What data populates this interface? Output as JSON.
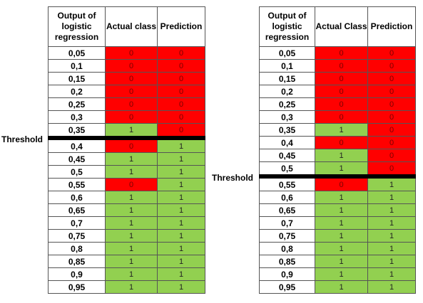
{
  "colors": {
    "red": "#ff0000",
    "green": "#92d050",
    "threshold_line": "#000000"
  },
  "left": {
    "threshold_label": "Threshold",
    "threshold_after_row": 6,
    "headers": [
      "Output of logistic regression",
      "Actual class",
      "Prediction"
    ],
    "rows": [
      {
        "output": "0,05",
        "actual": "0",
        "pred": "0"
      },
      {
        "output": "0,1",
        "actual": "0",
        "pred": "0"
      },
      {
        "output": "0,15",
        "actual": "0",
        "pred": "0"
      },
      {
        "output": "0,2",
        "actual": "0",
        "pred": "0"
      },
      {
        "output": "0,25",
        "actual": "0",
        "pred": "0"
      },
      {
        "output": "0,3",
        "actual": "0",
        "pred": "0"
      },
      {
        "output": "0,35",
        "actual": "1",
        "pred": "0"
      },
      {
        "output": "0,4",
        "actual": "0",
        "pred": "1"
      },
      {
        "output": "0,45",
        "actual": "1",
        "pred": "1"
      },
      {
        "output": "0,5",
        "actual": "1",
        "pred": "1"
      },
      {
        "output": "0,55",
        "actual": "0",
        "pred": "1"
      },
      {
        "output": "0,6",
        "actual": "1",
        "pred": "1"
      },
      {
        "output": "0,65",
        "actual": "1",
        "pred": "1"
      },
      {
        "output": "0,7",
        "actual": "1",
        "pred": "1"
      },
      {
        "output": "0,75",
        "actual": "1",
        "pred": "1"
      },
      {
        "output": "0,8",
        "actual": "1",
        "pred": "1"
      },
      {
        "output": "0,85",
        "actual": "1",
        "pred": "1"
      },
      {
        "output": "0,9",
        "actual": "1",
        "pred": "1"
      },
      {
        "output": "0,95",
        "actual": "1",
        "pred": "1"
      }
    ]
  },
  "right": {
    "threshold_label": "Threshold",
    "threshold_after_row": 9,
    "headers": [
      "Output of logistic regression",
      "Actual Class",
      "Prediction"
    ],
    "rows": [
      {
        "output": "0,05",
        "actual": "0",
        "pred": "0"
      },
      {
        "output": "0,1",
        "actual": "0",
        "pred": "0"
      },
      {
        "output": "0,15",
        "actual": "0",
        "pred": "0"
      },
      {
        "output": "0,2",
        "actual": "0",
        "pred": "0"
      },
      {
        "output": "0,25",
        "actual": "0",
        "pred": "0"
      },
      {
        "output": "0,3",
        "actual": "0",
        "pred": "0"
      },
      {
        "output": "0,35",
        "actual": "1",
        "pred": "0"
      },
      {
        "output": "0,4",
        "actual": "0",
        "pred": "0"
      },
      {
        "output": "0,45",
        "actual": "1",
        "pred": "0"
      },
      {
        "output": "0,5",
        "actual": "1",
        "pred": "0"
      },
      {
        "output": "0,55",
        "actual": "0",
        "pred": "1"
      },
      {
        "output": "0,6",
        "actual": "1",
        "pred": "1"
      },
      {
        "output": "0,65",
        "actual": "1",
        "pred": "1"
      },
      {
        "output": "0,7",
        "actual": "1",
        "pred": "1"
      },
      {
        "output": "0,75",
        "actual": "1",
        "pred": "1"
      },
      {
        "output": "0,8",
        "actual": "1",
        "pred": "1"
      },
      {
        "output": "0,85",
        "actual": "1",
        "pred": "1"
      },
      {
        "output": "0,9",
        "actual": "1",
        "pred": "1"
      },
      {
        "output": "0,95",
        "actual": "1",
        "pred": "1"
      }
    ]
  }
}
